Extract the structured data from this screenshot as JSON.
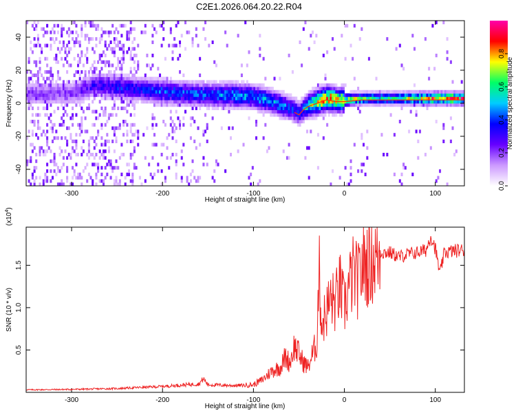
{
  "title": "C2E1.2026.064.20.22.R04",
  "chart_data": [
    {
      "type": "heatmap",
      "xlabel": "Height of straight line (km)",
      "ylabel": "Frequency (Hz)",
      "xlim": [
        -350,
        132
      ],
      "ylim": [
        -50,
        50
      ],
      "x_ticks": [
        -300,
        -200,
        -100,
        0,
        100
      ],
      "y_ticks": [
        -40,
        -20,
        0,
        20,
        40
      ],
      "colorbar": {
        "label": "Normalized spectral amplitude",
        "range": [
          0,
          1
        ],
        "ticks": [
          "0.0",
          "0.2",
          "0.4",
          "0.6",
          "0.8"
        ],
        "colors": [
          "#ffffff",
          "#cc99ff",
          "#6600ff",
          "#0000ff",
          "#00ccff",
          "#00ff66",
          "#ffff00",
          "#ff0000",
          "#ff00aa"
        ]
      },
      "ridge": {
        "x": [
          -300,
          -275,
          -250,
          -220,
          -200,
          -175,
          -150,
          -125,
          -100,
          -80,
          -60,
          -50,
          -45,
          -40,
          -30,
          -20,
          -10,
          0,
          20,
          50,
          100,
          132
        ],
        "freq_hz": [
          5,
          10,
          9,
          7,
          6,
          5,
          4,
          4,
          3,
          0,
          -4,
          -7,
          -4,
          -2,
          0,
          2,
          1,
          1,
          2,
          2,
          2,
          2
        ],
        "amplitude": [
          0.2,
          0.3,
          0.35,
          0.35,
          0.4,
          0.4,
          0.4,
          0.45,
          0.45,
          0.45,
          0.4,
          0.35,
          0.45,
          0.55,
          0.75,
          0.8,
          0.75,
          0.7,
          0.6,
          0.55,
          0.8,
          0.85
        ]
      }
    },
    {
      "type": "line",
      "xlabel": "Height of straight line (km)",
      "ylabel": "SNR (10 * v/v)",
      "y_multiplier_label": "(x10",
      "y_multiplier_exp": "4",
      "xlim": [
        -350,
        132
      ],
      "ylim": [
        0,
        19500
      ],
      "x_ticks": [
        -300,
        -200,
        -100,
        0,
        100
      ],
      "y_ticks": [
        5000,
        10000,
        15000
      ],
      "y_tick_labels": [
        "0.5",
        "1.0",
        "1.5"
      ],
      "series": [
        {
          "color": "#ee2222",
          "x": [
            -350,
            -300,
            -250,
            -200,
            -160,
            -155,
            -150,
            -120,
            -100,
            -90,
            -80,
            -70,
            -65,
            -60,
            -55,
            -50,
            -45,
            -40,
            -35,
            -30,
            -28,
            -25,
            -20,
            -15,
            -10,
            -5,
            0,
            5,
            10,
            15,
            20,
            30,
            40,
            50,
            60,
            70,
            80,
            90,
            95,
            100,
            105,
            110,
            120,
            132
          ],
          "y": [
            300,
            350,
            450,
            700,
            1000,
            1600,
            900,
            800,
            900,
            1500,
            2500,
            3000,
            4200,
            3500,
            5500,
            4500,
            3500,
            3000,
            4500,
            6000,
            15000,
            8000,
            9500,
            11000,
            10500,
            12500,
            10000,
            12500,
            14000,
            13000,
            15000,
            15500,
            16500,
            16500,
            16000,
            16300,
            16500,
            16800,
            18500,
            17000,
            14000,
            16500,
            16700,
            16800
          ]
        }
      ]
    }
  ]
}
